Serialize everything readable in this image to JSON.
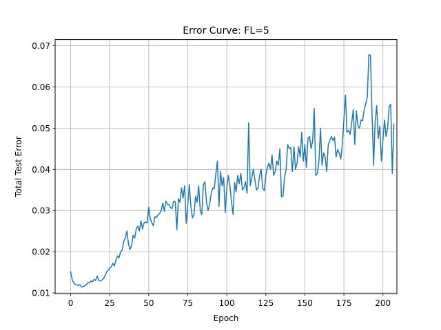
{
  "chart_data": {
    "type": "line",
    "title": "Error Curve: FL=5",
    "xlabel": "Epoch",
    "ylabel": "Total Test Error",
    "xlim": [
      -9.95,
      208.95
    ],
    "ylim": [
      0.0098,
      0.0715
    ],
    "xticks": [
      0,
      25,
      50,
      75,
      100,
      125,
      150,
      175,
      200
    ],
    "xtick_labels": [
      "0",
      "25",
      "50",
      "75",
      "100",
      "125",
      "150",
      "175",
      "200"
    ],
    "yticks": [
      0.01,
      0.02,
      0.03,
      0.04,
      0.05,
      0.06,
      0.07
    ],
    "ytick_labels": [
      "0.01",
      "0.02",
      "0.03",
      "0.04",
      "0.05",
      "0.06",
      "0.07"
    ],
    "grid": true,
    "line_color": "#1f77b4",
    "series": [
      {
        "name": "Total Test Error",
        "x_start": 0,
        "x_step": 1,
        "values": [
          0.0151,
          0.0132,
          0.0124,
          0.0121,
          0.0119,
          0.0118,
          0.012,
          0.0114,
          0.0115,
          0.0117,
          0.012,
          0.0125,
          0.0124,
          0.0129,
          0.0127,
          0.0133,
          0.013,
          0.0141,
          0.013,
          0.0129,
          0.0131,
          0.0135,
          0.0142,
          0.015,
          0.0155,
          0.016,
          0.0163,
          0.0172,
          0.0165,
          0.018,
          0.019,
          0.0185,
          0.02,
          0.0204,
          0.0225,
          0.0233,
          0.025,
          0.022,
          0.0205,
          0.0215,
          0.024,
          0.0233,
          0.0255,
          0.0262,
          0.025,
          0.0275,
          0.0255,
          0.027,
          0.0272,
          0.027,
          0.0308,
          0.028,
          0.027,
          0.0263,
          0.0285,
          0.0283,
          0.029,
          0.0293,
          0.03,
          0.0318,
          0.0298,
          0.0323,
          0.0315,
          0.0314,
          0.0306,
          0.0305,
          0.0323,
          0.0321,
          0.0253,
          0.0329,
          0.032,
          0.0355,
          0.033,
          0.036,
          0.0268,
          0.0313,
          0.0363,
          0.031,
          0.0282,
          0.029,
          0.0335,
          0.032,
          0.036,
          0.03,
          0.029,
          0.0362,
          0.037,
          0.032,
          0.03,
          0.0315,
          0.034,
          0.0355,
          0.0353,
          0.039,
          0.042,
          0.031,
          0.0395,
          0.036,
          0.038,
          0.0295,
          0.0355,
          0.0385,
          0.036,
          0.0322,
          0.029,
          0.0368,
          0.0345,
          0.0385,
          0.0365,
          0.039,
          0.035,
          0.0355,
          0.037,
          0.0342,
          0.0513,
          0.036,
          0.038,
          0.04,
          0.0375,
          0.035,
          0.0355,
          0.0385,
          0.04,
          0.0355,
          0.0348,
          0.0385,
          0.0405,
          0.0415,
          0.04,
          0.0435,
          0.0385,
          0.0395,
          0.042,
          0.041,
          0.045,
          0.0333,
          0.0335,
          0.038,
          0.04,
          0.046,
          0.045,
          0.0453,
          0.0395,
          0.0455,
          0.04,
          0.0415,
          0.0455,
          0.043,
          0.049,
          0.042,
          0.046,
          0.0405,
          0.0475,
          0.048,
          0.045,
          0.047,
          0.0548,
          0.0385,
          0.039,
          0.042,
          0.05,
          0.041,
          0.044,
          0.043,
          0.0395,
          0.046,
          0.047,
          0.048,
          0.047,
          0.0478,
          0.043,
          0.0448,
          0.044,
          0.0425,
          0.046,
          0.052,
          0.058,
          0.049,
          0.0495,
          0.0485,
          0.0513,
          0.0545,
          0.046,
          0.0542,
          0.0505,
          0.05,
          0.052,
          0.0518,
          0.0545,
          0.056,
          0.0575,
          0.0678,
          0.0677,
          0.054,
          0.041,
          0.0515,
          0.0555,
          0.0475,
          0.0505,
          0.042,
          0.047,
          0.052,
          0.048,
          0.05,
          0.0553,
          0.0558,
          0.039,
          0.051
        ]
      }
    ]
  }
}
